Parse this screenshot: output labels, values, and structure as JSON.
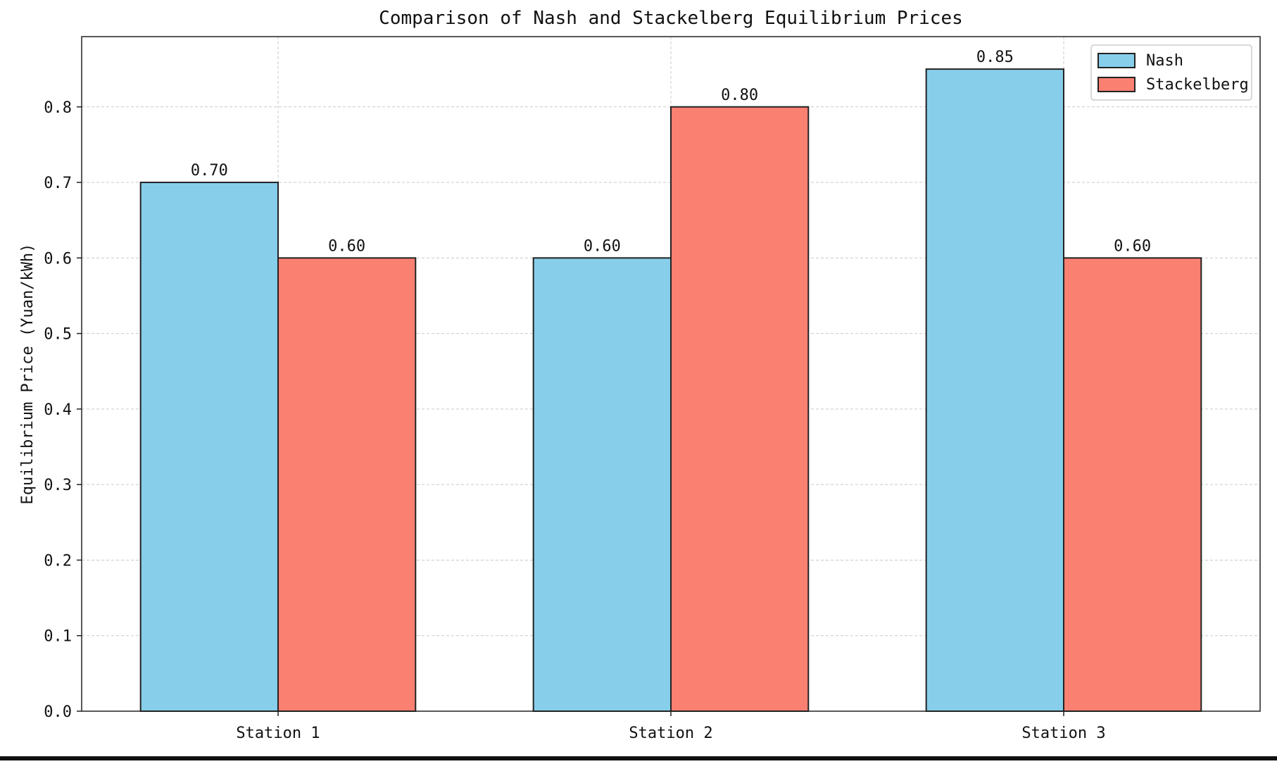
{
  "chart_data": {
    "type": "bar",
    "title": "Comparison of Nash and Stackelberg Equilibrium Prices",
    "xlabel": "",
    "ylabel": "Equilibrium Price (Yuan/kWh)",
    "categories": [
      "Station 1",
      "Station 2",
      "Station 3"
    ],
    "series": [
      {
        "name": "Nash",
        "color": "#87CEEB",
        "values": [
          0.7,
          0.6,
          0.85
        ],
        "labels": [
          "0.70",
          "0.60",
          "0.85"
        ]
      },
      {
        "name": "Stackelberg",
        "color": "#FA8072",
        "values": [
          0.6,
          0.8,
          0.6
        ],
        "labels": [
          "0.60",
          "0.80",
          "0.60"
        ]
      }
    ],
    "ylim": [
      0,
      0.893
    ],
    "yticks": [
      0.0,
      0.1,
      0.2,
      0.3,
      0.4,
      0.5,
      0.6,
      0.7,
      0.8
    ],
    "ytick_labels": [
      "0.0",
      "0.1",
      "0.2",
      "0.3",
      "0.4",
      "0.5",
      "0.6",
      "0.7",
      "0.8"
    ],
    "grid": true,
    "legend_position": "top-right"
  }
}
